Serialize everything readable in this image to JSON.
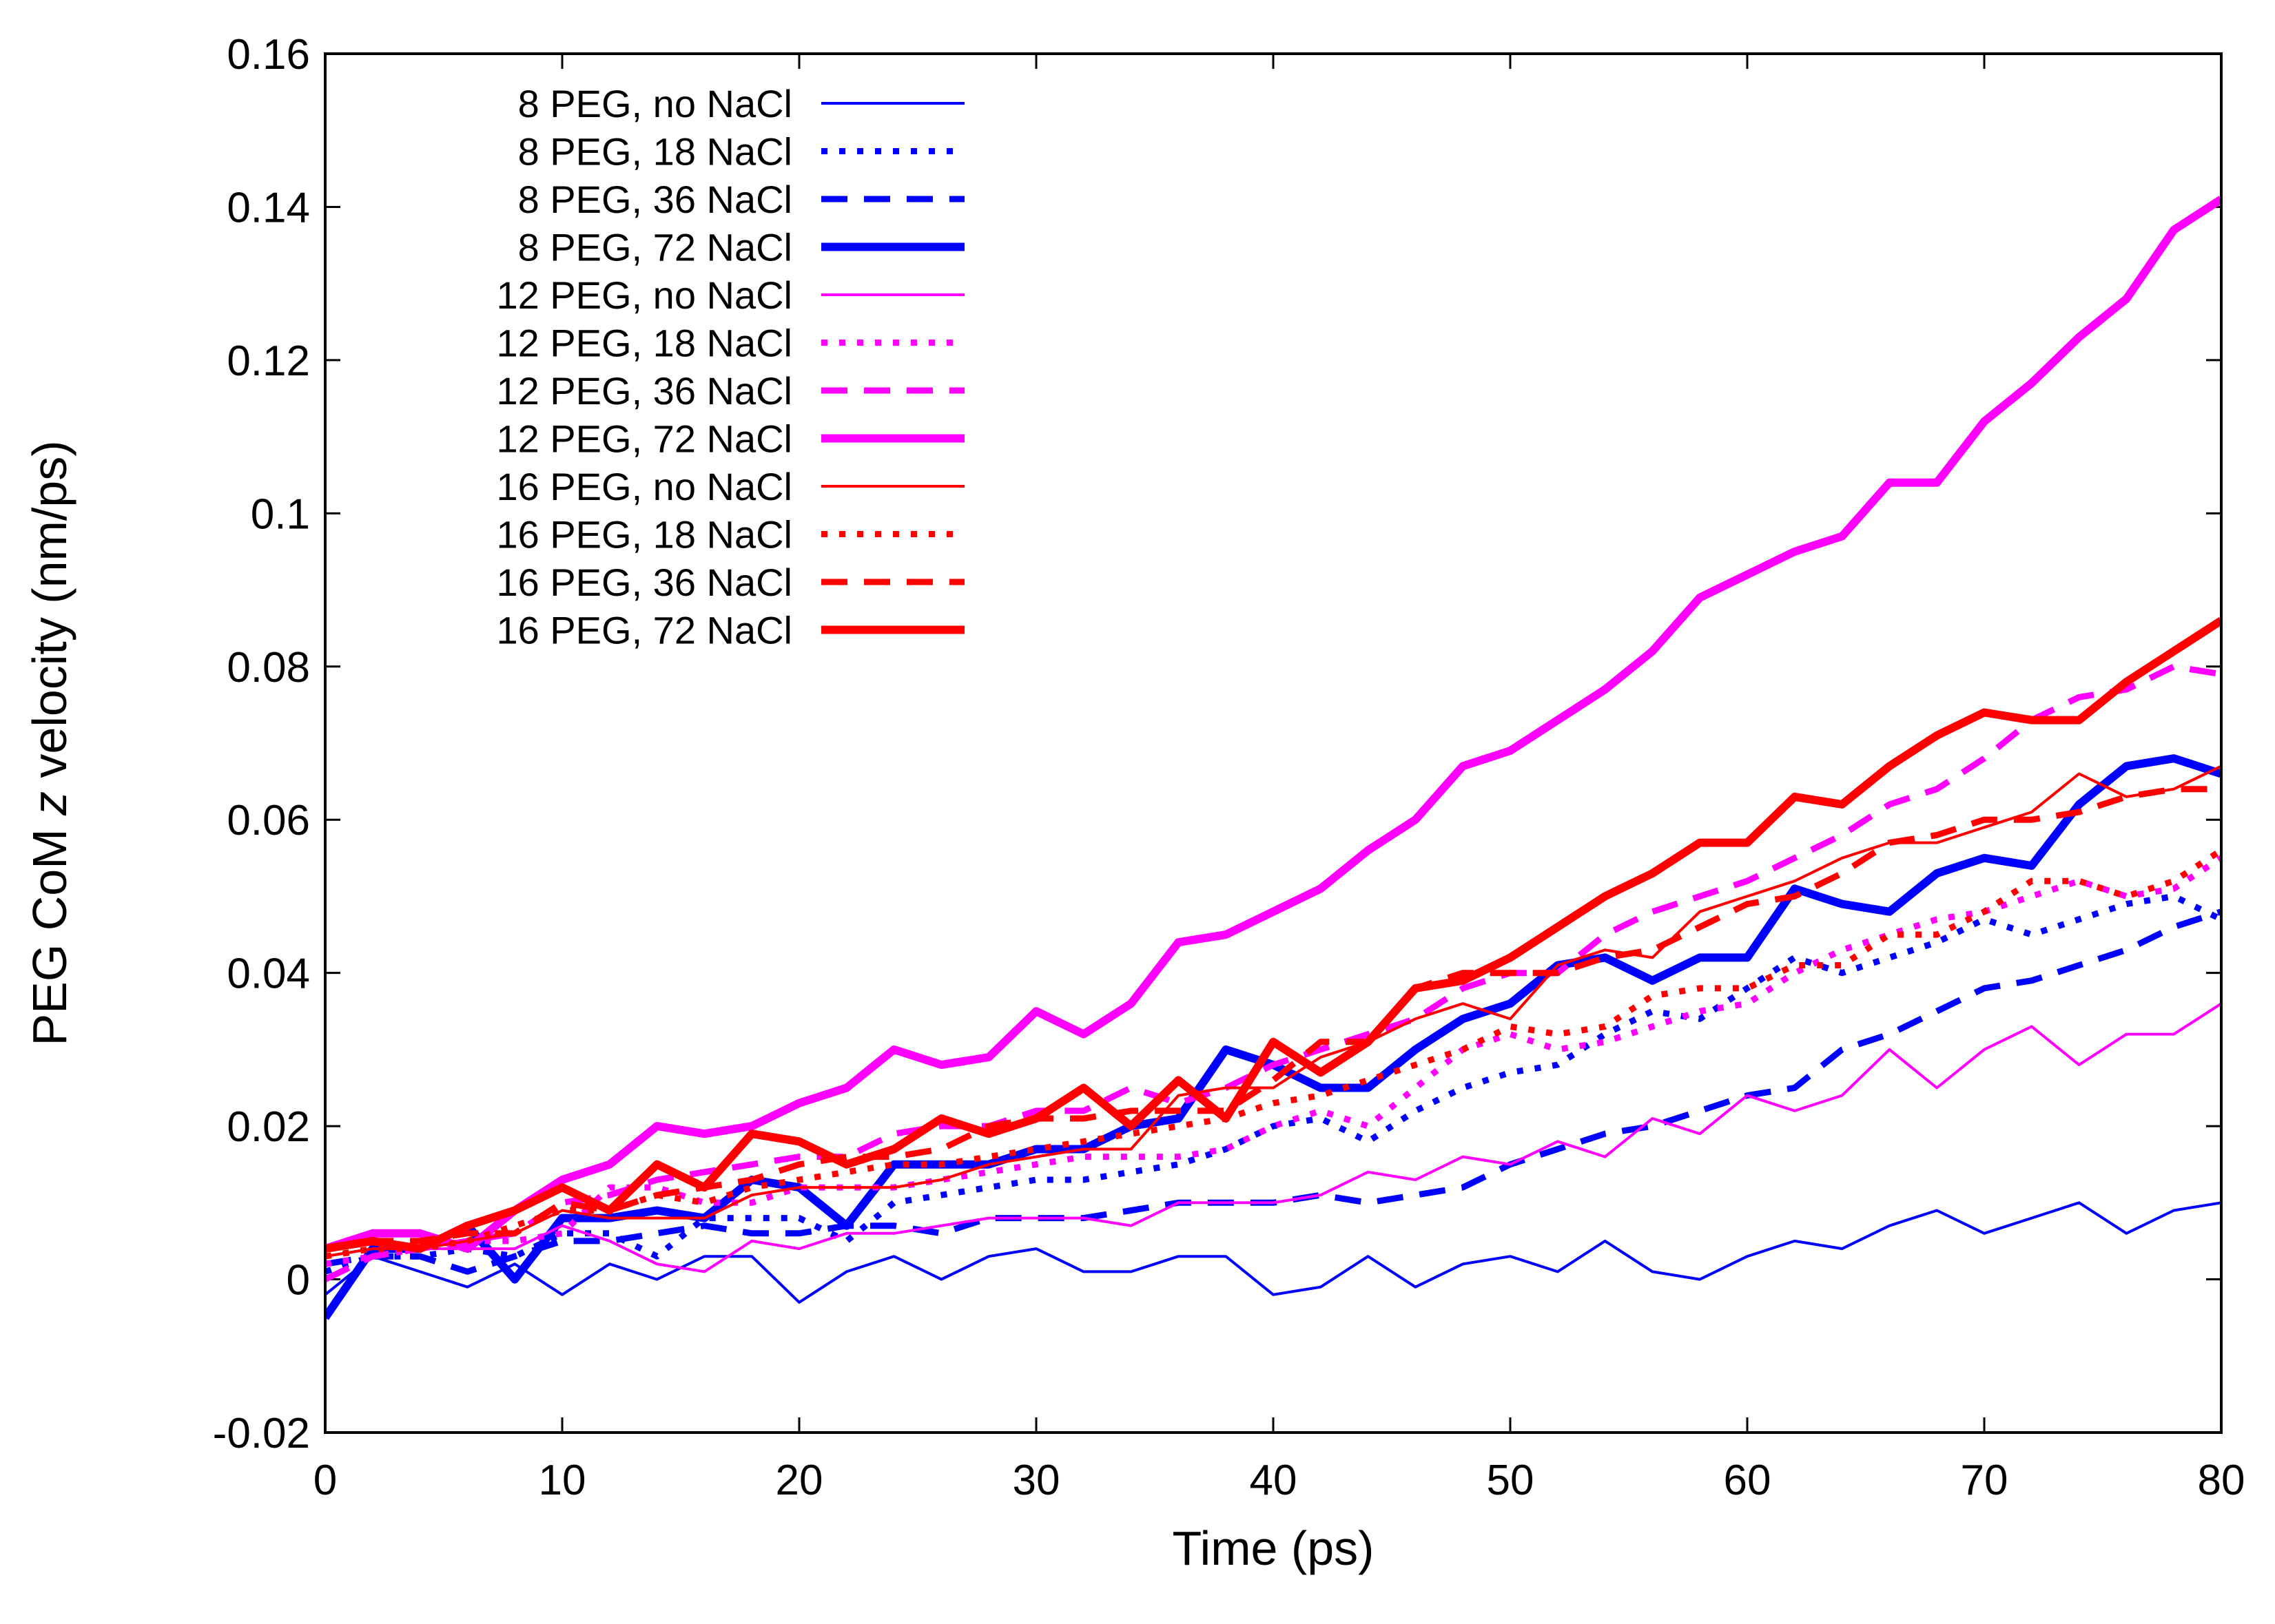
{
  "chart_data": {
    "type": "line",
    "title": "",
    "xlabel": "Time (ps)",
    "ylabel_prefix": "PEG CoM ",
    "ylabel_var": "z",
    "ylabel_suffix": " velocity (nm/ps)",
    "xlim": [
      0,
      80
    ],
    "ylim": [
      -0.02,
      0.16
    ],
    "xticks": [
      0,
      10,
      20,
      30,
      40,
      50,
      60,
      70,
      80
    ],
    "xtick_labels": [
      "0",
      "10",
      "20",
      "30",
      "40",
      "50",
      "60",
      "70",
      "80"
    ],
    "yticks": [
      -0.02,
      0,
      0.02,
      0.04,
      0.06,
      0.08,
      0.1,
      0.12,
      0.14,
      0.16
    ],
    "ytick_labels": [
      "-0.02",
      "0",
      "0.02",
      "0.04",
      "0.06",
      "0.08",
      "0.1",
      "0.12",
      "0.14",
      "0.16"
    ],
    "grid": false,
    "legend_position": "top-left",
    "x": [
      0,
      2,
      4,
      6,
      8,
      10,
      12,
      14,
      16,
      18,
      20,
      22,
      24,
      26,
      28,
      30,
      32,
      34,
      36,
      38,
      40,
      42,
      44,
      46,
      48,
      50,
      52,
      54,
      56,
      58,
      60,
      62,
      64,
      66,
      68,
      70,
      72,
      74,
      76,
      78,
      80
    ],
    "series": [
      {
        "name": "8 PEG, no NaCl",
        "color": "#0000ff",
        "style": "thin",
        "values": [
          -0.002,
          0.003,
          0.001,
          -0.001,
          0.002,
          -0.002,
          0.002,
          0.0,
          0.003,
          0.003,
          -0.003,
          0.001,
          0.003,
          0.0,
          0.003,
          0.004,
          0.001,
          0.001,
          0.003,
          0.003,
          -0.002,
          -0.001,
          0.003,
          -0.001,
          0.002,
          0.003,
          0.001,
          0.005,
          0.001,
          0.0,
          0.003,
          0.005,
          0.004,
          0.007,
          0.009,
          0.006,
          0.008,
          0.01,
          0.006,
          0.009,
          0.01
        ]
      },
      {
        "name": "8 PEG, 18 NaCl",
        "color": "#0000ff",
        "style": "dotted",
        "values": [
          0.001,
          0.003,
          0.003,
          0.004,
          0.003,
          0.006,
          0.006,
          0.003,
          0.008,
          0.008,
          0.008,
          0.005,
          0.01,
          0.011,
          0.012,
          0.013,
          0.013,
          0.014,
          0.015,
          0.017,
          0.02,
          0.021,
          0.018,
          0.022,
          0.025,
          0.027,
          0.028,
          0.032,
          0.035,
          0.034,
          0.038,
          0.042,
          0.04,
          0.042,
          0.044,
          0.047,
          0.045,
          0.047,
          0.049,
          0.05,
          0.047
        ]
      },
      {
        "name": "8 PEG, 36 NaCl",
        "color": "#0000ff",
        "style": "dashed",
        "values": [
          0.002,
          0.003,
          0.003,
          0.001,
          0.003,
          0.005,
          0.005,
          0.006,
          0.007,
          0.006,
          0.006,
          0.007,
          0.007,
          0.006,
          0.008,
          0.008,
          0.008,
          0.009,
          0.01,
          0.01,
          0.01,
          0.011,
          0.01,
          0.011,
          0.012,
          0.015,
          0.017,
          0.019,
          0.02,
          0.022,
          0.024,
          0.025,
          0.03,
          0.032,
          0.035,
          0.038,
          0.039,
          0.041,
          0.043,
          0.046,
          0.048
        ]
      },
      {
        "name": "8 PEG, 72 NaCl",
        "color": "#0000ff",
        "style": "thick",
        "values": [
          -0.005,
          0.004,
          0.004,
          0.007,
          0.0,
          0.008,
          0.008,
          0.009,
          0.008,
          0.013,
          0.012,
          0.007,
          0.015,
          0.015,
          0.015,
          0.017,
          0.017,
          0.02,
          0.021,
          0.03,
          0.028,
          0.025,
          0.025,
          0.03,
          0.034,
          0.036,
          0.041,
          0.042,
          0.039,
          0.042,
          0.042,
          0.051,
          0.049,
          0.048,
          0.053,
          0.055,
          0.054,
          0.062,
          0.067,
          0.068,
          0.066
        ]
      },
      {
        "name": "12 PEG, no NaCl",
        "color": "#ff00ff",
        "style": "thin",
        "values": [
          0.003,
          0.004,
          0.004,
          0.004,
          0.004,
          0.007,
          0.005,
          0.002,
          0.001,
          0.005,
          0.004,
          0.006,
          0.006,
          0.007,
          0.008,
          0.008,
          0.008,
          0.007,
          0.01,
          0.01,
          0.01,
          0.011,
          0.014,
          0.013,
          0.016,
          0.015,
          0.018,
          0.016,
          0.021,
          0.019,
          0.024,
          0.022,
          0.024,
          0.03,
          0.025,
          0.03,
          0.033,
          0.028,
          0.032,
          0.032,
          0.036
        ]
      },
      {
        "name": "12 PEG, 18 NaCl",
        "color": "#ff00ff",
        "style": "dotted",
        "values": [
          0.002,
          0.003,
          0.004,
          0.005,
          0.005,
          0.006,
          0.012,
          0.012,
          0.01,
          0.01,
          0.012,
          0.012,
          0.012,
          0.013,
          0.014,
          0.015,
          0.016,
          0.016,
          0.016,
          0.017,
          0.02,
          0.022,
          0.02,
          0.025,
          0.03,
          0.032,
          0.03,
          0.031,
          0.033,
          0.035,
          0.036,
          0.04,
          0.043,
          0.045,
          0.047,
          0.048,
          0.05,
          0.052,
          0.05,
          0.051,
          0.055
        ]
      },
      {
        "name": "12 PEG, 36 NaCl",
        "color": "#ff00ff",
        "style": "dashed",
        "values": [
          0.0,
          0.003,
          0.004,
          0.005,
          0.006,
          0.01,
          0.011,
          0.013,
          0.014,
          0.015,
          0.016,
          0.016,
          0.019,
          0.02,
          0.02,
          0.022,
          0.022,
          0.025,
          0.023,
          0.025,
          0.028,
          0.03,
          0.032,
          0.034,
          0.038,
          0.04,
          0.04,
          0.045,
          0.048,
          0.05,
          0.052,
          0.055,
          0.058,
          0.062,
          0.064,
          0.068,
          0.073,
          0.076,
          0.077,
          0.08,
          0.079
        ]
      },
      {
        "name": "12 PEG, 72 NaCl",
        "color": "#ff00ff",
        "style": "thick",
        "values": [
          0.004,
          0.006,
          0.006,
          0.004,
          0.009,
          0.013,
          0.015,
          0.02,
          0.019,
          0.02,
          0.023,
          0.025,
          0.03,
          0.028,
          0.029,
          0.035,
          0.032,
          0.036,
          0.044,
          0.045,
          0.048,
          0.051,
          0.056,
          0.06,
          0.067,
          0.069,
          0.073,
          0.077,
          0.082,
          0.089,
          0.092,
          0.095,
          0.097,
          0.104,
          0.104,
          0.112,
          0.117,
          0.123,
          0.128,
          0.137,
          0.141
        ]
      },
      {
        "name": "16 PEG, no NaCl",
        "color": "#ff0000",
        "style": "thin",
        "values": [
          0.003,
          0.004,
          0.004,
          0.005,
          0.006,
          0.009,
          0.008,
          0.008,
          0.008,
          0.011,
          0.012,
          0.012,
          0.012,
          0.013,
          0.015,
          0.016,
          0.017,
          0.017,
          0.024,
          0.025,
          0.025,
          0.029,
          0.031,
          0.034,
          0.036,
          0.034,
          0.041,
          0.043,
          0.042,
          0.048,
          0.05,
          0.052,
          0.055,
          0.057,
          0.057,
          0.059,
          0.061,
          0.066,
          0.063,
          0.064,
          0.067
        ]
      },
      {
        "name": "16 PEG, 18 NaCl",
        "color": "#ff0000",
        "style": "dotted",
        "values": [
          0.003,
          0.004,
          0.004,
          0.005,
          0.007,
          0.009,
          0.009,
          0.011,
          0.01,
          0.012,
          0.013,
          0.014,
          0.015,
          0.015,
          0.016,
          0.017,
          0.018,
          0.019,
          0.02,
          0.021,
          0.023,
          0.024,
          0.026,
          0.028,
          0.03,
          0.033,
          0.032,
          0.033,
          0.037,
          0.038,
          0.038,
          0.041,
          0.041,
          0.045,
          0.045,
          0.048,
          0.052,
          0.052,
          0.05,
          0.052,
          0.056
        ]
      },
      {
        "name": "16 PEG, 36 NaCl",
        "color": "#ff0000",
        "style": "dashed",
        "values": [
          0.004,
          0.005,
          0.005,
          0.006,
          0.006,
          0.01,
          0.009,
          0.011,
          0.012,
          0.013,
          0.015,
          0.016,
          0.016,
          0.017,
          0.02,
          0.021,
          0.021,
          0.022,
          0.022,
          0.022,
          0.026,
          0.031,
          0.031,
          0.038,
          0.04,
          0.04,
          0.04,
          0.042,
          0.043,
          0.046,
          0.049,
          0.05,
          0.053,
          0.057,
          0.058,
          0.06,
          0.06,
          0.061,
          0.063,
          0.064,
          0.064
        ]
      },
      {
        "name": "16 PEG, 72 NaCl",
        "color": "#ff0000",
        "style": "thick",
        "values": [
          0.004,
          0.005,
          0.004,
          0.007,
          0.009,
          0.012,
          0.009,
          0.015,
          0.012,
          0.019,
          0.018,
          0.015,
          0.017,
          0.021,
          0.019,
          0.021,
          0.025,
          0.02,
          0.026,
          0.021,
          0.031,
          0.027,
          0.031,
          0.038,
          0.039,
          0.042,
          0.046,
          0.05,
          0.053,
          0.057,
          0.057,
          0.063,
          0.062,
          0.067,
          0.071,
          0.074,
          0.073,
          0.073,
          0.078,
          0.082,
          0.086
        ]
      }
    ]
  }
}
